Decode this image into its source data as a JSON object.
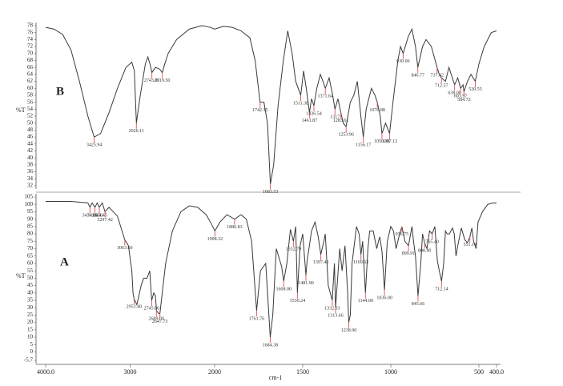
{
  "chart_data": [
    {
      "type": "line",
      "panel_label": "B",
      "y_label": "%T",
      "color": "#3a3a3a",
      "peak_color": "#e06060",
      "xlim": [
        4000,
        400
      ],
      "ylim": [
        32,
        78
      ],
      "yticks": [
        32,
        34,
        36,
        38,
        40,
        42,
        44,
        46,
        48,
        50,
        52,
        54,
        56,
        58,
        60,
        62,
        64,
        66,
        68,
        70,
        72,
        74,
        76,
        78
      ],
      "x": [
        4000,
        3900,
        3800,
        3700,
        3600,
        3500,
        3425.94,
        3350,
        3250,
        3150,
        3050,
        2980,
        2950,
        2926.11,
        2880,
        2820,
        2790,
        2760,
        2743.07,
        2700,
        2650,
        2619.5,
        2590,
        2550,
        2450,
        2300,
        2150,
        2050,
        2000,
        1950,
        1900,
        1850,
        1800,
        1770,
        1742.15,
        1720,
        1700,
        1683.53,
        1665,
        1640,
        1610,
        1585,
        1560,
        1540,
        1511.38,
        1495,
        1480,
        1461.87,
        1450,
        1436.54,
        1420,
        1400,
        1385,
        1371.64,
        1350,
        1330,
        1317,
        1300,
        1283.61,
        1270,
        1253.96,
        1230,
        1210,
        1190,
        1170,
        1156.17,
        1140,
        1110,
        1090,
        1076.88,
        1060,
        1050.36,
        1030,
        1007.12,
        990,
        960,
        945,
        930.06,
        900,
        880,
        860,
        846.77,
        820,
        800,
        770,
        737.42,
        725,
        712.57,
        690,
        670,
        638,
        620,
        603.97,
        590,
        584.72,
        565,
        545,
        520.55,
        500,
        470,
        430,
        400
      ],
      "values": [
        77.5,
        77,
        75.5,
        71,
        62,
        52,
        46,
        47,
        53,
        60,
        66,
        67.5,
        65,
        50,
        58,
        67,
        69,
        66.5,
        64.5,
        66,
        65.5,
        64.5,
        67,
        70,
        74,
        77,
        78,
        77.5,
        77,
        77.8,
        77.5,
        76.5,
        74.5,
        68,
        56,
        56,
        50,
        32.5,
        38,
        55,
        68,
        76.5,
        70,
        62,
        58,
        65,
        60,
        53,
        57,
        55,
        60,
        64,
        62,
        60,
        63,
        58,
        54,
        57,
        53,
        50,
        49,
        56,
        58,
        62,
        52,
        46,
        54,
        60,
        58,
        56,
        52,
        47,
        50,
        47,
        55,
        68,
        72,
        70,
        75,
        77,
        72,
        66,
        72,
        74,
        72,
        66,
        64,
        63,
        62,
        66,
        61,
        63,
        60,
        61,
        59,
        62,
        64,
        62,
        67,
        72,
        76,
        76.5
      ],
      "peaks": [
        {
          "x": 3425.94,
          "y": 46,
          "label": "3425.94"
        },
        {
          "x": 2926.11,
          "y": 50,
          "label": "2926.11"
        },
        {
          "x": 2743.07,
          "y": 64.5,
          "label": "2743.07"
        },
        {
          "x": 2619.5,
          "y": 64.5,
          "label": "2619.50"
        },
        {
          "x": 1742.15,
          "y": 56,
          "label": "1742.15"
        },
        {
          "x": 1683.53,
          "y": 32.5,
          "label": "1683.53"
        },
        {
          "x": 1511.38,
          "y": 58,
          "label": "1511.38"
        },
        {
          "x": 1461.87,
          "y": 53,
          "label": "1461.87"
        },
        {
          "x": 1436.54,
          "y": 55,
          "label": "1436.54"
        },
        {
          "x": 1371.64,
          "y": 60,
          "label": "1371.64"
        },
        {
          "x": 1317,
          "y": 54,
          "label": "1317"
        },
        {
          "x": 1283.61,
          "y": 53,
          "label": "1283.61"
        },
        {
          "x": 1253.96,
          "y": 49,
          "label": "1253.96"
        },
        {
          "x": 1156.17,
          "y": 46,
          "label": "1156.17"
        },
        {
          "x": 1076.88,
          "y": 56,
          "label": "1076.88"
        },
        {
          "x": 1050.36,
          "y": 47,
          "label": "1050.36"
        },
        {
          "x": 1007.12,
          "y": 47,
          "label": "1007.12"
        },
        {
          "x": 930.06,
          "y": 70,
          "label": "930.06"
        },
        {
          "x": 846.77,
          "y": 66,
          "label": "846.77"
        },
        {
          "x": 737.42,
          "y": 66,
          "label": "737.42"
        },
        {
          "x": 712.57,
          "y": 63,
          "label": "712.57"
        },
        {
          "x": 638,
          "y": 61,
          "label": "638.00"
        },
        {
          "x": 603.97,
          "y": 60,
          "label": "603.97"
        },
        {
          "x": 584.72,
          "y": 59,
          "label": "584.72"
        },
        {
          "x": 520.55,
          "y": 62,
          "label": "520.55"
        }
      ]
    },
    {
      "type": "line",
      "panel_label": "A",
      "y_label": "%T",
      "x_label": "cm-1",
      "color": "#3a3a3a",
      "peak_color": "#e06060",
      "xlim": [
        4000,
        400
      ],
      "ylim": [
        -5.7,
        105
      ],
      "xticks": [
        {
          "value": 4000,
          "label": "4000.0"
        },
        3000,
        2000,
        1500,
        1000,
        500,
        {
          "value": 400,
          "label": "400.0"
        }
      ],
      "yticks": [
        105,
        100,
        95,
        90,
        85,
        80,
        75,
        70,
        65,
        60,
        55,
        50,
        45,
        40,
        35,
        30,
        25,
        20,
        15,
        10,
        5,
        0,
        -5.7
      ],
      "x": [
        4000,
        3700,
        3500,
        3474.9,
        3450,
        3416.5,
        3390,
        3364.45,
        3330,
        3297.42,
        3250,
        3150,
        3063.6,
        3020,
        2980,
        2966,
        2953.4,
        2920,
        2870,
        2840,
        2800,
        2768,
        2745,
        2720,
        2700,
        2689,
        2660,
        2647.73,
        2620,
        2580,
        2500,
        2400,
        2300,
        2200,
        2100,
        2050,
        1998.32,
        1970,
        1930,
        1886.83,
        1850,
        1820,
        1790,
        1761.76,
        1740,
        1710,
        1684.38,
        1670,
        1650,
        1630,
        1620,
        1608,
        1590,
        1570,
        1552.79,
        1540,
        1530.24,
        1515,
        1500,
        1481.9,
        1475,
        1467,
        1450,
        1430,
        1412,
        1397.43,
        1380,
        1372.2,
        1355,
        1332.33,
        1320,
        1313.66,
        1290,
        1276.6,
        1260,
        1245,
        1238.9,
        1230,
        1220,
        1195,
        1180,
        1169.63,
        1160,
        1144,
        1130,
        1120,
        1100,
        1080,
        1070,
        1062.26,
        1050,
        1036,
        1020,
        1000,
        985,
        970,
        950,
        936.75,
        920,
        899.91,
        880,
        870,
        860,
        845.66,
        830,
        820,
        808.4,
        795,
        780,
        765.4,
        750,
        736,
        725,
        712.14,
        700,
        690,
        680,
        668,
        650,
        640,
        630,
        620,
        600,
        580,
        565,
        551.14,
        540,
        530,
        516,
        505,
        480,
        450,
        420,
        400
      ],
      "values": [
        102,
        102,
        101,
        98,
        101,
        98,
        101,
        98,
        101,
        95,
        98,
        92,
        76,
        72,
        55,
        40,
        36,
        32,
        45,
        50,
        50,
        55,
        35,
        40,
        38,
        28,
        26,
        26,
        40,
        60,
        82,
        95,
        99,
        98,
        93,
        88,
        82,
        88,
        93,
        90,
        93,
        90,
        75,
        28,
        55,
        60,
        10,
        25,
        70,
        62,
        58,
        48,
        60,
        83,
        75,
        85,
        40,
        72,
        80,
        52,
        62,
        68,
        82,
        88,
        78,
        66,
        75,
        80,
        45,
        35,
        60,
        30,
        70,
        55,
        72,
        40,
        20,
        25,
        60,
        85,
        80,
        66,
        75,
        40,
        70,
        82,
        82,
        70,
        75,
        78,
        68,
        42,
        75,
        85,
        82,
        70,
        80,
        85,
        75,
        72,
        85,
        74,
        65,
        38,
        60,
        80,
        74,
        70,
        82,
        80,
        85,
        62,
        55,
        48,
        60,
        82,
        80,
        80,
        84,
        80,
        65,
        72,
        84,
        76,
        74,
        78,
        84,
        75,
        70,
        88,
        95,
        100,
        101,
        101
      ],
      "peaks": [
        {
          "x": 3474.9,
          "y": 98,
          "label": "3474.90"
        },
        {
          "x": 3416.5,
          "y": 98,
          "label": "3416.50"
        },
        {
          "x": 3364.45,
          "y": 98,
          "label": "3364.45"
        },
        {
          "x": 3297.42,
          "y": 95,
          "label": "3297.42"
        },
        {
          "x": 3063.6,
          "y": 76,
          "label": "3063.60"
        },
        {
          "x": 2953.4,
          "y": 36,
          "label": "2953.40"
        },
        {
          "x": 2745,
          "y": 35,
          "label": "2745.00"
        },
        {
          "x": 2689,
          "y": 28,
          "label": "2689.00"
        },
        {
          "x": 2647.73,
          "y": 26,
          "label": "2647.73"
        },
        {
          "x": 1998.32,
          "y": 82,
          "label": "1998.32"
        },
        {
          "x": 1886.83,
          "y": 90,
          "label": "1886.83"
        },
        {
          "x": 1761.76,
          "y": 28,
          "label": "1761.76"
        },
        {
          "x": 1684.38,
          "y": 10,
          "label": "1684.38"
        },
        {
          "x": 1608,
          "y": 48,
          "label": "1608.00"
        },
        {
          "x": 1552.79,
          "y": 75,
          "label": "1552.79"
        },
        {
          "x": 1530.24,
          "y": 40,
          "label": "1530.24"
        },
        {
          "x": 1481.9,
          "y": 52,
          "label": "1481.90"
        },
        {
          "x": 1397.43,
          "y": 66,
          "label": "1397.43"
        },
        {
          "x": 1332.33,
          "y": 35,
          "label": "1332.33"
        },
        {
          "x": 1313.66,
          "y": 30,
          "label": "1313.66"
        },
        {
          "x": 1238.9,
          "y": 20,
          "label": "1238.90"
        },
        {
          "x": 1169.63,
          "y": 66,
          "label": "1169.63"
        },
        {
          "x": 1144,
          "y": 40,
          "label": "1144.00"
        },
        {
          "x": 1036,
          "y": 42,
          "label": "1036.00"
        },
        {
          "x": 936.75,
          "y": 85,
          "label": "936.75"
        },
        {
          "x": 899.91,
          "y": 72,
          "label": "899.91"
        },
        {
          "x": 845.66,
          "y": 38,
          "label": "845.66"
        },
        {
          "x": 808.4,
          "y": 74,
          "label": "808.40"
        },
        {
          "x": 765.4,
          "y": 80,
          "label": "765.40"
        },
        {
          "x": 712.14,
          "y": 48,
          "label": "712.14"
        },
        {
          "x": 551.14,
          "y": 78,
          "label": "551.14"
        }
      ]
    }
  ]
}
